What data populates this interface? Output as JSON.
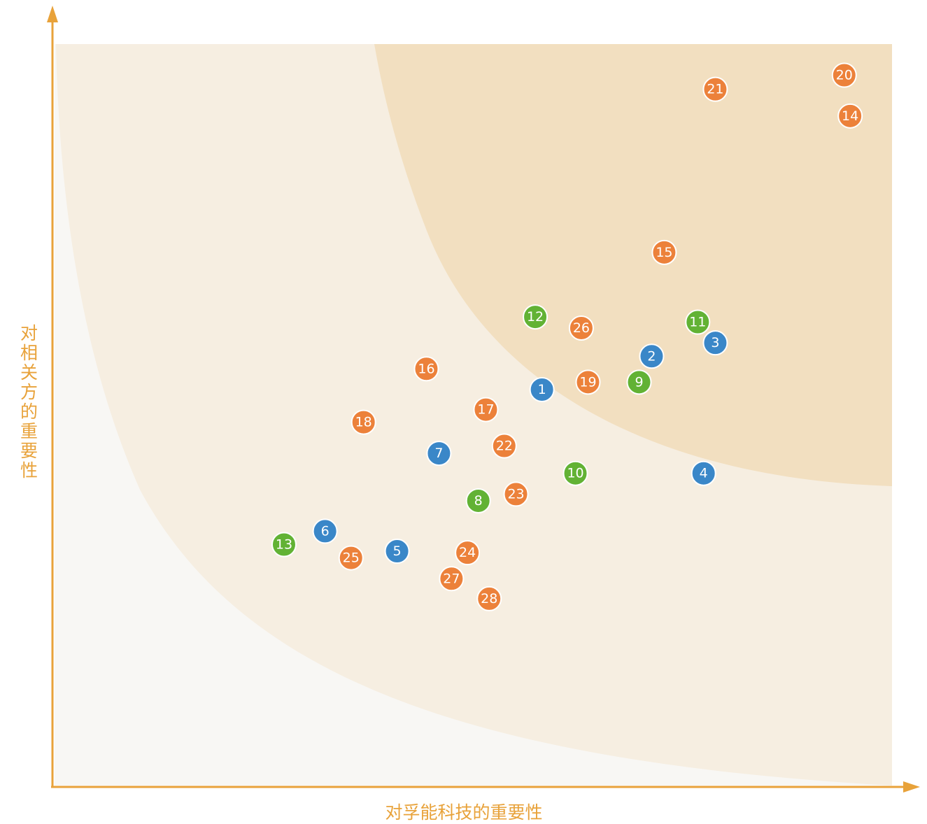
{
  "chart_data": {
    "type": "scatter",
    "x_label": "对孚能科技的重要性",
    "y_label": "对相关方的重要性",
    "xlim": [
      0,
      100
    ],
    "ylim": [
      0,
      100
    ],
    "axis_color": "#e8a23a",
    "points": [
      {
        "label": "1",
        "x": 58.2,
        "y": 53.4,
        "color": "#3a87c8"
      },
      {
        "label": "2",
        "x": 71.3,
        "y": 57.9,
        "color": "#3a87c8"
      },
      {
        "label": "3",
        "x": 78.9,
        "y": 59.7,
        "color": "#3a87c8"
      },
      {
        "label": "4",
        "x": 77.5,
        "y": 42.1,
        "color": "#3a87c8"
      },
      {
        "label": "5",
        "x": 40.9,
        "y": 31.6,
        "color": "#3a87c8"
      },
      {
        "label": "6",
        "x": 32.3,
        "y": 34.3,
        "color": "#3a87c8"
      },
      {
        "label": "7",
        "x": 45.9,
        "y": 44.8,
        "color": "#3a87c8"
      },
      {
        "label": "8",
        "x": 50.6,
        "y": 38.4,
        "color": "#62b234"
      },
      {
        "label": "9",
        "x": 69.8,
        "y": 54.4,
        "color": "#62b234"
      },
      {
        "label": "10",
        "x": 62.2,
        "y": 42.1,
        "color": "#62b234"
      },
      {
        "label": "11",
        "x": 76.8,
        "y": 62.5,
        "color": "#62b234"
      },
      {
        "label": "12",
        "x": 57.4,
        "y": 63.2,
        "color": "#62b234"
      },
      {
        "label": "13",
        "x": 27.4,
        "y": 32.5,
        "color": "#62b234"
      },
      {
        "label": "14",
        "x": 95.0,
        "y": 90.3,
        "color": "#ec813a"
      },
      {
        "label": "15",
        "x": 72.8,
        "y": 71.9,
        "color": "#ec813a"
      },
      {
        "label": "16",
        "x": 44.4,
        "y": 56.2,
        "color": "#ec813a"
      },
      {
        "label": "17",
        "x": 51.5,
        "y": 50.7,
        "color": "#ec813a"
      },
      {
        "label": "18",
        "x": 36.9,
        "y": 49.0,
        "color": "#ec813a"
      },
      {
        "label": "19",
        "x": 63.7,
        "y": 54.4,
        "color": "#ec813a"
      },
      {
        "label": "20",
        "x": 94.3,
        "y": 95.8,
        "color": "#ec813a"
      },
      {
        "label": "21",
        "x": 78.9,
        "y": 93.9,
        "color": "#ec813a"
      },
      {
        "label": "22",
        "x": 53.7,
        "y": 45.8,
        "color": "#ec813a"
      },
      {
        "label": "23",
        "x": 55.1,
        "y": 39.3,
        "color": "#ec813a"
      },
      {
        "label": "24",
        "x": 49.3,
        "y": 31.4,
        "color": "#ec813a"
      },
      {
        "label": "25",
        "x": 35.4,
        "y": 30.7,
        "color": "#ec813a"
      },
      {
        "label": "26",
        "x": 62.9,
        "y": 61.7,
        "color": "#ec813a"
      },
      {
        "label": "27",
        "x": 47.4,
        "y": 27.9,
        "color": "#ec813a"
      },
      {
        "label": "28",
        "x": 51.9,
        "y": 25.2,
        "color": "#ec813a"
      }
    ]
  }
}
